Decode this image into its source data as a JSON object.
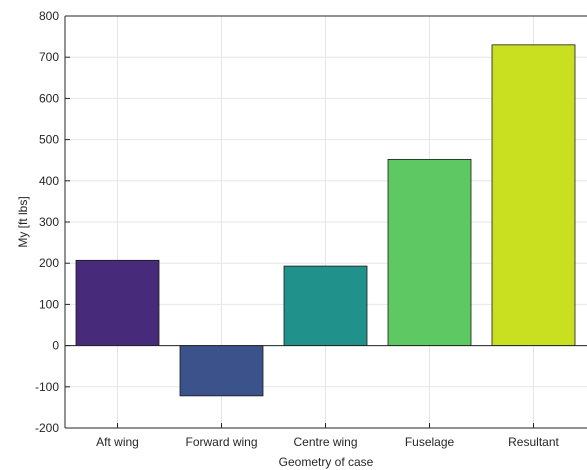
{
  "chart_data": {
    "type": "bar",
    "title": "",
    "xlabel": "Geometry of case",
    "ylabel": "My [ft lbs]",
    "categories": [
      "Aft wing",
      "Forward wing",
      "Centre wing",
      "Fuselage",
      "Resultant"
    ],
    "values": [
      207,
      -122,
      193,
      452,
      730
    ],
    "colors": [
      "#472a7a",
      "#3b528b",
      "#21918c",
      "#5ec962",
      "#c8e020"
    ],
    "ylim": [
      -200,
      800
    ],
    "yticks": [
      -200,
      -100,
      0,
      100,
      200,
      300,
      400,
      500,
      600,
      700,
      800
    ],
    "grid": true,
    "legend": "none"
  }
}
